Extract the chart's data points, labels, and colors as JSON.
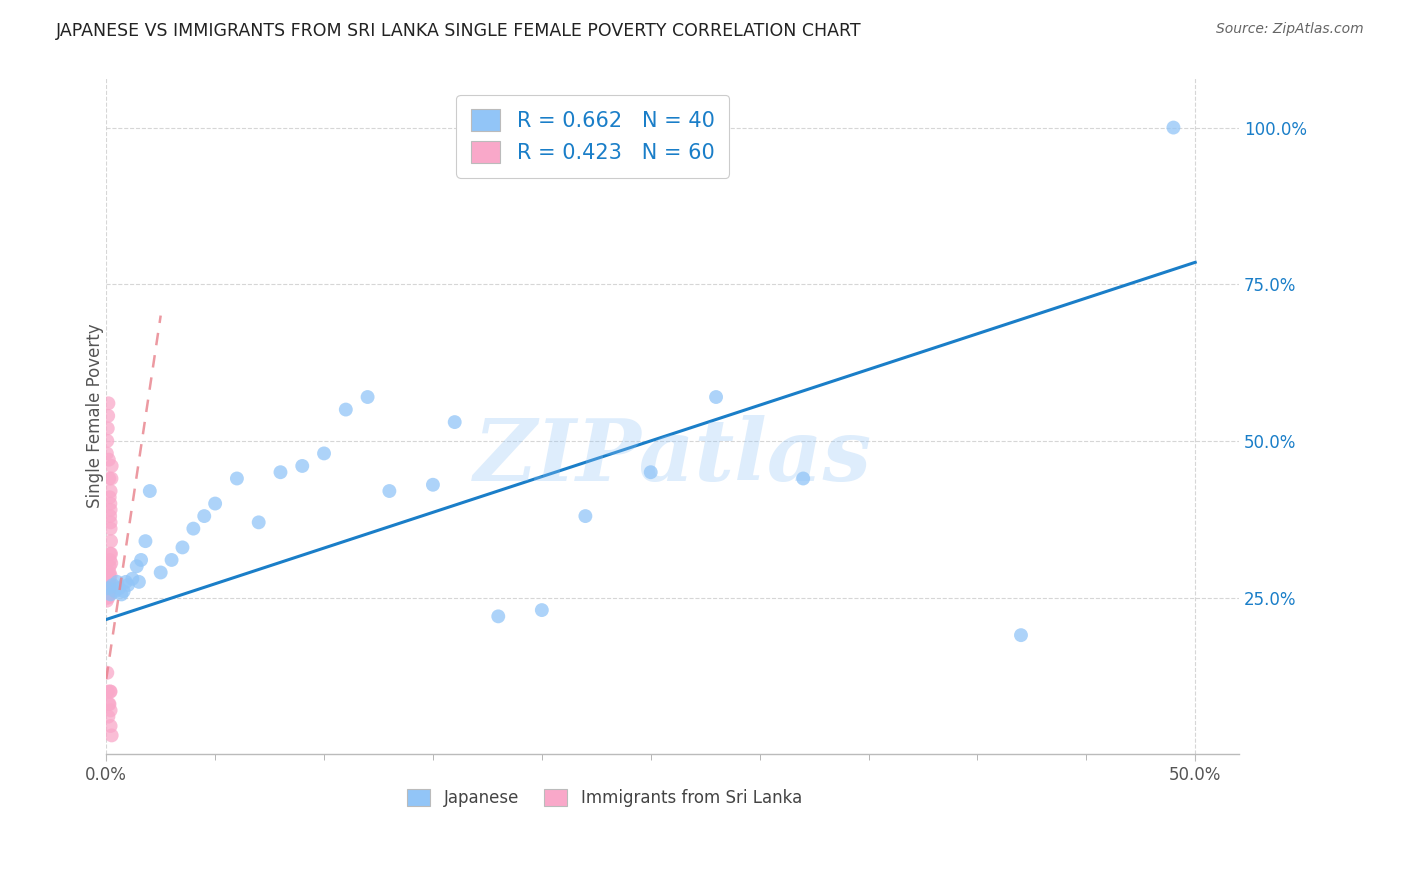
{
  "title": "JAPANESE VS IMMIGRANTS FROM SRI LANKA SINGLE FEMALE POVERTY CORRELATION CHART",
  "source": "Source: ZipAtlas.com",
  "ylabel": "Single Female Poverty",
  "x_tick_labels_positions": [
    0.0,
    0.5
  ],
  "x_tick_labels_text": [
    "0.0%",
    "50.0%"
  ],
  "y_tick_labels": [
    "25.0%",
    "50.0%",
    "75.0%",
    "100.0%"
  ],
  "y_tick_values": [
    0.25,
    0.5,
    0.75,
    1.0
  ],
  "xlim": [
    0.0,
    0.52
  ],
  "ylim": [
    0.0,
    1.08
  ],
  "legend_labels": [
    "Japanese",
    "Immigrants from Sri Lanka"
  ],
  "legend_R": [
    "0.662",
    "0.423"
  ],
  "legend_N": [
    "40",
    "60"
  ],
  "japanese_color": "#92C5F7",
  "srilanka_color": "#F9A8C9",
  "japanese_line_color": "#1A7EC8",
  "srilanka_line_color": "#E8808A",
  "background_color": "#ffffff",
  "watermark": "ZIPatlas",
  "jp_line_x": [
    0.0,
    0.5
  ],
  "jp_line_y": [
    0.215,
    0.785
  ],
  "sl_line_x": [
    0.0,
    0.025
  ],
  "sl_line_y": [
    0.12,
    0.7
  ],
  "japanese_x": [
    0.001,
    0.002,
    0.003,
    0.004,
    0.005,
    0.006,
    0.007,
    0.008,
    0.009,
    0.01,
    0.012,
    0.014,
    0.015,
    0.016,
    0.018,
    0.02,
    0.025,
    0.03,
    0.035,
    0.04,
    0.045,
    0.05,
    0.06,
    0.07,
    0.08,
    0.09,
    0.1,
    0.11,
    0.12,
    0.13,
    0.15,
    0.16,
    0.18,
    0.2,
    0.22,
    0.25,
    0.28,
    0.32,
    0.42,
    0.49
  ],
  "japanese_y": [
    0.265,
    0.255,
    0.27,
    0.26,
    0.275,
    0.265,
    0.255,
    0.26,
    0.275,
    0.27,
    0.28,
    0.3,
    0.275,
    0.31,
    0.34,
    0.42,
    0.29,
    0.31,
    0.33,
    0.36,
    0.38,
    0.4,
    0.44,
    0.37,
    0.45,
    0.46,
    0.48,
    0.55,
    0.57,
    0.42,
    0.43,
    0.53,
    0.22,
    0.23,
    0.38,
    0.45,
    0.57,
    0.44,
    0.19,
    1.0
  ],
  "srilanka_x": [
    0.0003,
    0.0004,
    0.0005,
    0.0005,
    0.0006,
    0.0006,
    0.0007,
    0.0007,
    0.0008,
    0.0008,
    0.0009,
    0.0009,
    0.001,
    0.001,
    0.001,
    0.001,
    0.001,
    0.001,
    0.0012,
    0.0012,
    0.0013,
    0.0013,
    0.0014,
    0.0014,
    0.0015,
    0.0015,
    0.0016,
    0.0016,
    0.0017,
    0.0018,
    0.0019,
    0.002,
    0.002,
    0.002,
    0.002,
    0.0022,
    0.0022,
    0.0023,
    0.0024,
    0.0025,
    0.0003,
    0.0005,
    0.0007,
    0.0009,
    0.001,
    0.0012,
    0.0014,
    0.0016,
    0.0018,
    0.002,
    0.0005,
    0.0007,
    0.001,
    0.0012,
    0.0015,
    0.0018,
    0.002,
    0.002,
    0.002,
    0.0025
  ],
  "srilanka_y": [
    0.245,
    0.25,
    0.25,
    0.255,
    0.255,
    0.26,
    0.26,
    0.265,
    0.265,
    0.27,
    0.255,
    0.26,
    0.25,
    0.255,
    0.26,
    0.265,
    0.27,
    0.275,
    0.265,
    0.27,
    0.28,
    0.285,
    0.26,
    0.27,
    0.28,
    0.29,
    0.275,
    0.3,
    0.31,
    0.38,
    0.4,
    0.42,
    0.37,
    0.39,
    0.36,
    0.34,
    0.32,
    0.305,
    0.44,
    0.46,
    0.48,
    0.5,
    0.52,
    0.54,
    0.56,
    0.47,
    0.44,
    0.41,
    0.32,
    0.285,
    0.13,
    0.1,
    0.06,
    0.08,
    0.08,
    0.1,
    0.07,
    0.1,
    0.045,
    0.03
  ]
}
